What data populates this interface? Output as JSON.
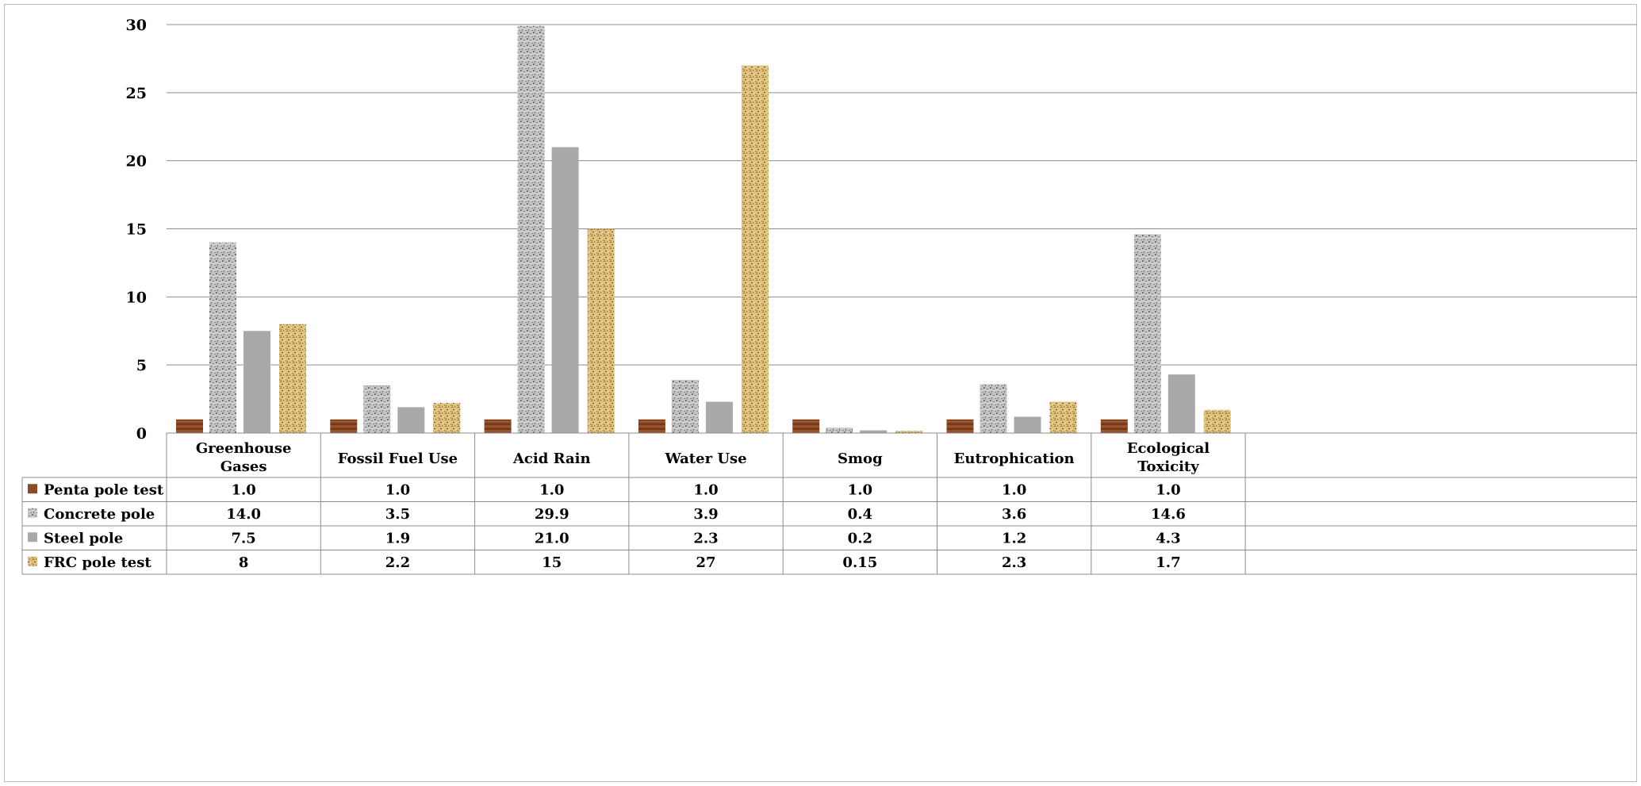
{
  "chart_data": {
    "type": "bar",
    "title": "",
    "xlabel": "",
    "ylabel": "",
    "ylim": [
      0,
      30
    ],
    "yticks": [
      "0",
      "5",
      "10",
      "15",
      "20",
      "25",
      "30"
    ],
    "ytick_values": [
      0,
      5,
      10,
      15,
      20,
      25,
      30
    ],
    "grid": "horizontal",
    "legend": "data table rows (left)",
    "categories": [
      [
        "Greenhouse",
        "Gases"
      ],
      [
        "Fossil Fuel Use"
      ],
      [
        "Acid Rain"
      ],
      [
        "Water Use"
      ],
      [
        "Smog"
      ],
      [
        "Eutrophication"
      ],
      [
        "Ecological",
        "Toxicity"
      ]
    ],
    "series": [
      {
        "name": "Penta pole test",
        "pattern": "wood",
        "values": [
          1.0,
          1.0,
          1.0,
          1.0,
          1.0,
          1.0,
          1.0
        ],
        "labels": [
          "1.0",
          "1.0",
          "1.0",
          "1.0",
          "1.0",
          "1.0",
          "1.0"
        ]
      },
      {
        "name": "Concrete pole",
        "pattern": "concrete",
        "values": [
          14.0,
          3.5,
          29.9,
          3.9,
          0.4,
          3.6,
          14.6
        ],
        "labels": [
          "14.0",
          "3.5",
          "29.9",
          "3.9",
          "0.4",
          "3.6",
          "14.6"
        ]
      },
      {
        "name": "Steel pole",
        "pattern": "steel",
        "values": [
          7.5,
          1.9,
          21.0,
          2.3,
          0.2,
          1.2,
          4.3
        ],
        "labels": [
          "7.5",
          "1.9",
          "21.0",
          "2.3",
          "0.2",
          "1.2",
          "4.3"
        ]
      },
      {
        "name": "FRC pole test",
        "pattern": "frc",
        "values": [
          8,
          2.2,
          15,
          27,
          0.15,
          2.3,
          1.7
        ],
        "labels": [
          "8",
          "2.2",
          "15",
          "27",
          "0.15",
          "2.3",
          "1.7"
        ]
      }
    ],
    "colors": {
      "wood": "#8b4a24",
      "concrete": "#b5b5b5",
      "steel": "#a9a9a9",
      "frc": "#d2b26a",
      "grid": "#8c8c8c",
      "table_border": "#8c8c8c"
    }
  }
}
